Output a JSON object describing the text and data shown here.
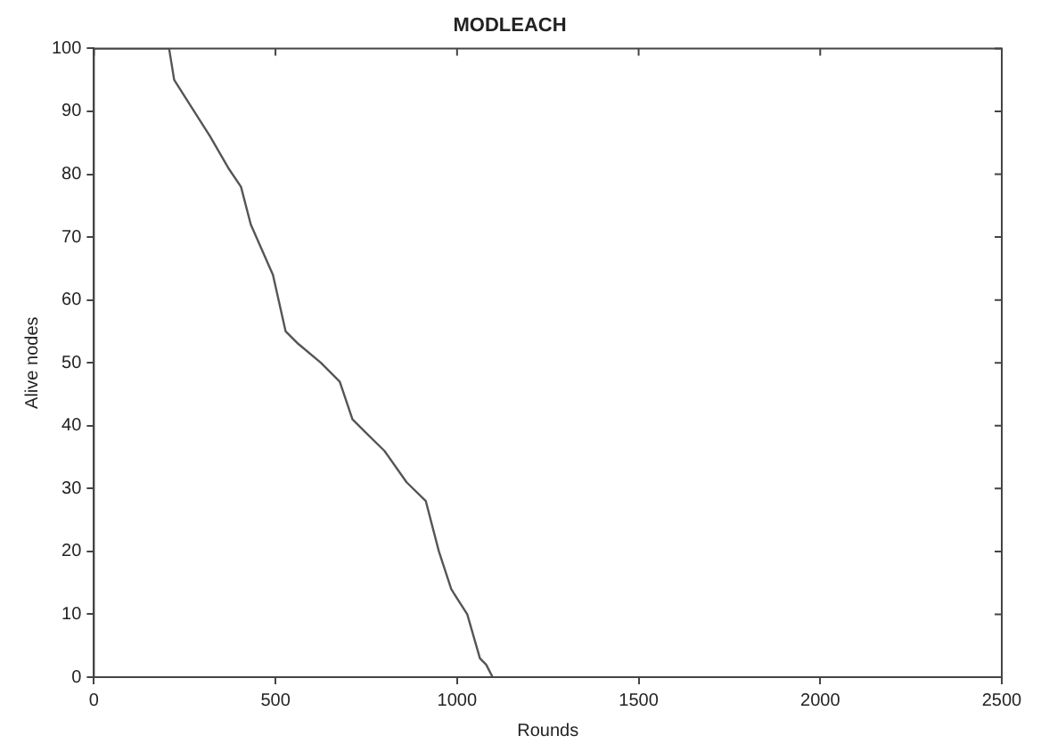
{
  "chart_data": {
    "type": "line",
    "title": "MODLEACH",
    "xlabel": "Rounds",
    "ylabel": "Alive nodes",
    "x": [
      0,
      207,
      221,
      265,
      320,
      370,
      405,
      432,
      493,
      528,
      563,
      625,
      677,
      712,
      747,
      800,
      861,
      914,
      950,
      984,
      1028,
      1063,
      1080,
      1098
    ],
    "series": [
      {
        "color": "#555555",
        "values": [
          100,
          100,
          95,
          91,
          86,
          81,
          78,
          72,
          64,
          55,
          53,
          50,
          47,
          41,
          39,
          36,
          31,
          28,
          20,
          14,
          10,
          3,
          2,
          0
        ]
      }
    ],
    "xlim": [
      0,
      2500
    ],
    "xticks": [
      0,
      500,
      1000,
      1500,
      2000,
      2500
    ],
    "ylim": [
      0,
      100
    ],
    "yticks": [
      0,
      10,
      20,
      30,
      40,
      50,
      60,
      70,
      80,
      90,
      100
    ],
    "grid": false,
    "legend": false,
    "marker": "none",
    "line_style": "solid"
  }
}
